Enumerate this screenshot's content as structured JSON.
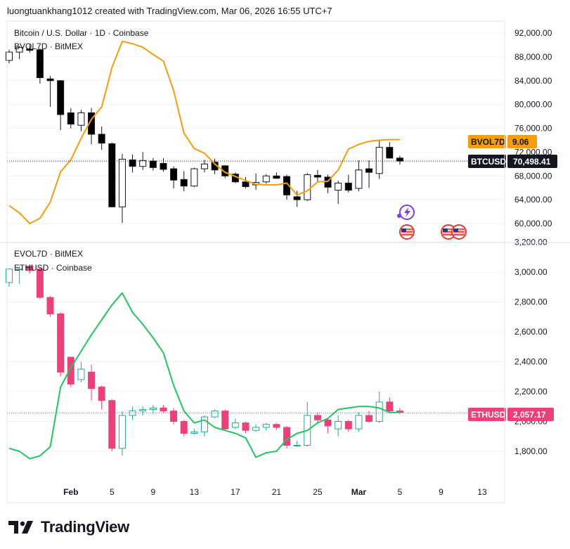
{
  "header": {
    "text": "luongtuankhang1012 created with TradingView.com, Mar 06, 2026 16:55 UTC+7"
  },
  "footer": {
    "brand": "TradingView"
  },
  "colors": {
    "up": "#ffffff",
    "down": "#000000",
    "eth_down": "#ec407a",
    "btc_vol": "#f59d0c",
    "eth_vol": "#22c55e",
    "grid": "#f0f3fa"
  },
  "chart_data": [
    {
      "type": "candlestick",
      "title": "Bitcoin / U.S. Dollar · 1D · Coinbase",
      "overlay_title": "BVOL7D · BitMEX",
      "y_ticks": [
        60000,
        64000,
        68000,
        72000,
        76000,
        80000,
        84000,
        88000,
        92000
      ],
      "y_tick_labels": [
        "60,000.00",
        "64,000.00",
        "68,000.00",
        "72,000.00",
        "76,000.00",
        "80,000.00",
        "84,000.00",
        "88,000.00",
        "92,000.00"
      ],
      "ylim": [
        57800,
        93500
      ],
      "last_price": "70,498.41",
      "last_price_value": 70498.41,
      "last_label": "BTCUSD",
      "overlay_label": "BVOL7D",
      "overlay_value": "9.06",
      "candles": [
        {
          "o": 87400,
          "h": 89200,
          "l": 86900,
          "c": 88800
        },
        {
          "o": 88800,
          "h": 89800,
          "l": 87600,
          "c": 89600
        },
        {
          "o": 89300,
          "h": 90100,
          "l": 88700,
          "c": 89100
        },
        {
          "o": 89200,
          "h": 89400,
          "l": 83500,
          "c": 84500
        },
        {
          "o": 84300,
          "h": 84800,
          "l": 79600,
          "c": 84000
        },
        {
          "o": 84000,
          "h": 84100,
          "l": 75700,
          "c": 78300
        },
        {
          "o": 78600,
          "h": 79400,
          "l": 76000,
          "c": 76700
        },
        {
          "o": 76500,
          "h": 79100,
          "l": 75500,
          "c": 78600
        },
        {
          "o": 78600,
          "h": 79400,
          "l": 73300,
          "c": 75000
        },
        {
          "o": 75000,
          "h": 76300,
          "l": 72400,
          "c": 73500
        },
        {
          "o": 73400,
          "h": 73600,
          "l": 62800,
          "c": 62800
        },
        {
          "o": 62800,
          "h": 71700,
          "l": 60100,
          "c": 70800
        },
        {
          "o": 70700,
          "h": 71600,
          "l": 68600,
          "c": 69600
        },
        {
          "o": 69600,
          "h": 72000,
          "l": 69000,
          "c": 70600
        },
        {
          "o": 70500,
          "h": 71000,
          "l": 68900,
          "c": 69400
        },
        {
          "o": 70100,
          "h": 71000,
          "l": 68700,
          "c": 69100
        },
        {
          "o": 69200,
          "h": 69600,
          "l": 65900,
          "c": 67300
        },
        {
          "o": 67400,
          "h": 68800,
          "l": 65400,
          "c": 66300
        },
        {
          "o": 66300,
          "h": 69400,
          "l": 66100,
          "c": 69200
        },
        {
          "o": 69200,
          "h": 70700,
          "l": 68600,
          "c": 70000
        },
        {
          "o": 70300,
          "h": 70900,
          "l": 68300,
          "c": 69000
        },
        {
          "o": 69700,
          "h": 69800,
          "l": 67600,
          "c": 68000
        },
        {
          "o": 68300,
          "h": 68600,
          "l": 66800,
          "c": 67000
        },
        {
          "o": 67000,
          "h": 67800,
          "l": 65900,
          "c": 66200
        },
        {
          "o": 66500,
          "h": 68400,
          "l": 65700,
          "c": 66900
        },
        {
          "o": 67000,
          "h": 68300,
          "l": 66700,
          "c": 68000
        },
        {
          "o": 68000,
          "h": 68600,
          "l": 67500,
          "c": 67600
        },
        {
          "o": 67900,
          "h": 68200,
          "l": 64000,
          "c": 64800
        },
        {
          "o": 64500,
          "h": 65500,
          "l": 62800,
          "c": 64000
        },
        {
          "o": 64000,
          "h": 68500,
          "l": 63800,
          "c": 68200
        },
        {
          "o": 68100,
          "h": 69000,
          "l": 66900,
          "c": 67800
        },
        {
          "o": 67800,
          "h": 68200,
          "l": 65100,
          "c": 66100
        },
        {
          "o": 65600,
          "h": 67200,
          "l": 63300,
          "c": 66800
        },
        {
          "o": 66800,
          "h": 68200,
          "l": 65200,
          "c": 65600
        },
        {
          "o": 65900,
          "h": 70600,
          "l": 65400,
          "c": 69000
        },
        {
          "o": 69200,
          "h": 70600,
          "l": 66000,
          "c": 68600
        },
        {
          "o": 68400,
          "h": 74000,
          "l": 67500,
          "c": 72800
        },
        {
          "o": 72800,
          "h": 73700,
          "l": 70900,
          "c": 71000
        },
        {
          "o": 71000,
          "h": 71400,
          "l": 69900,
          "c": 70500
        }
      ],
      "overlay_series": {
        "name": "BVOL7D",
        "values": [
          63000,
          61800,
          60000,
          60900,
          63600,
          68700,
          70700,
          74300,
          77500,
          79600,
          86200,
          90600,
          90200,
          89600,
          88400,
          87300,
          82300,
          75200,
          72600,
          71800,
          70000,
          68600,
          67900,
          67200,
          66600,
          66500,
          66500,
          66800,
          64800,
          65500,
          67000,
          67100,
          69000,
          72500,
          73300,
          73800,
          74000,
          74100,
          74100
        ]
      }
    },
    {
      "type": "candlestick",
      "title": "ETHUSD · Coinbase",
      "overlay_title": "EVOL7D · BitMEX",
      "y_ticks": [
        1800,
        2000,
        2200,
        2400,
        2600,
        2800,
        3000,
        3200
      ],
      "y_tick_labels": [
        "1,800.00",
        "2,000.00",
        "2,200.00",
        "2,400.00",
        "2,600.00",
        "2,800.00",
        "3,000.00",
        "3,200.00"
      ],
      "ylim": [
        1600,
        3200
      ],
      "last_price": "2,057.17",
      "last_price_value": 2057.17,
      "last_label": "ETHUSD",
      "candles": [
        {
          "o": 2930,
          "h": 3020,
          "l": 2900,
          "c": 3020
        },
        {
          "o": 3020,
          "h": 3040,
          "l": 2920,
          "c": 3020
        },
        {
          "o": 3040,
          "h": 3050,
          "l": 2990,
          "c": 3010
        },
        {
          "o": 3020,
          "h": 3030,
          "l": 2820,
          "c": 2830
        },
        {
          "o": 2830,
          "h": 2840,
          "l": 2700,
          "c": 2720
        },
        {
          "o": 2720,
          "h": 2730,
          "l": 2300,
          "c": 2330
        },
        {
          "o": 2430,
          "h": 2430,
          "l": 2230,
          "c": 2250
        },
        {
          "o": 2280,
          "h": 2400,
          "l": 2260,
          "c": 2350
        },
        {
          "o": 2330,
          "h": 2380,
          "l": 2140,
          "c": 2220
        },
        {
          "o": 2230,
          "h": 2240,
          "l": 2080,
          "c": 2140
        },
        {
          "o": 2140,
          "h": 2150,
          "l": 1800,
          "c": 1820
        },
        {
          "o": 1820,
          "h": 2070,
          "l": 1770,
          "c": 2040
        },
        {
          "o": 2040,
          "h": 2100,
          "l": 2010,
          "c": 2070
        },
        {
          "o": 2070,
          "h": 2100,
          "l": 2040,
          "c": 2080
        },
        {
          "o": 2080,
          "h": 2110,
          "l": 2050,
          "c": 2090
        },
        {
          "o": 2090,
          "h": 2110,
          "l": 2060,
          "c": 2070
        },
        {
          "o": 2070,
          "h": 2090,
          "l": 1980,
          "c": 2000
        },
        {
          "o": 2000,
          "h": 2010,
          "l": 1900,
          "c": 1920
        },
        {
          "o": 1920,
          "h": 1950,
          "l": 1910,
          "c": 1930
        },
        {
          "o": 1930,
          "h": 2040,
          "l": 1900,
          "c": 2030
        },
        {
          "o": 2030,
          "h": 2080,
          "l": 2020,
          "c": 2070
        },
        {
          "o": 2070,
          "h": 2080,
          "l": 1940,
          "c": 1950
        },
        {
          "o": 1960,
          "h": 2020,
          "l": 1950,
          "c": 1990
        },
        {
          "o": 1990,
          "h": 2000,
          "l": 1920,
          "c": 1940
        },
        {
          "o": 1940,
          "h": 1980,
          "l": 1930,
          "c": 1960
        },
        {
          "o": 1960,
          "h": 1990,
          "l": 1940,
          "c": 1980
        },
        {
          "o": 1980,
          "h": 1990,
          "l": 1940,
          "c": 1960
        },
        {
          "o": 1960,
          "h": 1970,
          "l": 1820,
          "c": 1840
        },
        {
          "o": 1840,
          "h": 1870,
          "l": 1830,
          "c": 1840
        },
        {
          "o": 1840,
          "h": 2130,
          "l": 1830,
          "c": 2040
        },
        {
          "o": 2040,
          "h": 2060,
          "l": 1990,
          "c": 2010
        },
        {
          "o": 2010,
          "h": 2020,
          "l": 1920,
          "c": 1970
        },
        {
          "o": 1950,
          "h": 2040,
          "l": 1900,
          "c": 2000
        },
        {
          "o": 2000,
          "h": 2010,
          "l": 1930,
          "c": 1950
        },
        {
          "o": 1950,
          "h": 2060,
          "l": 1930,
          "c": 2040
        },
        {
          "o": 2040,
          "h": 2070,
          "l": 1990,
          "c": 2000
        },
        {
          "o": 2000,
          "h": 2200,
          "l": 1990,
          "c": 2130
        },
        {
          "o": 2130,
          "h": 2160,
          "l": 2060,
          "c": 2070
        },
        {
          "o": 2070,
          "h": 2090,
          "l": 2050,
          "c": 2060
        }
      ],
      "overlay_series": {
        "name": "EVOL7D",
        "values": [
          1820,
          1800,
          1750,
          1770,
          1830,
          2230,
          2360,
          2470,
          2580,
          2680,
          2780,
          2860,
          2730,
          2650,
          2560,
          2460,
          2240,
          2070,
          1990,
          2010,
          1960,
          1940,
          1920,
          1890,
          1760,
          1790,
          1800,
          1880,
          1920,
          1940,
          1990,
          2020,
          2080,
          2090,
          2100,
          2100,
          2090,
          2060,
          2060
        ]
      }
    }
  ],
  "x_axis": {
    "labels": [
      {
        "text": "Feb",
        "idx": 6,
        "bold": true
      },
      {
        "text": "5",
        "idx": 10
      },
      {
        "text": "9",
        "idx": 14
      },
      {
        "text": "13",
        "idx": 18
      },
      {
        "text": "17",
        "idx": 22
      },
      {
        "text": "21",
        "idx": 26
      },
      {
        "text": "25",
        "idx": 30
      },
      {
        "text": "Mar",
        "idx": 34,
        "bold": true
      },
      {
        "text": "5",
        "idx": 38
      },
      {
        "text": "9",
        "idx": 42
      },
      {
        "text": "13",
        "idx": 46
      }
    ]
  }
}
